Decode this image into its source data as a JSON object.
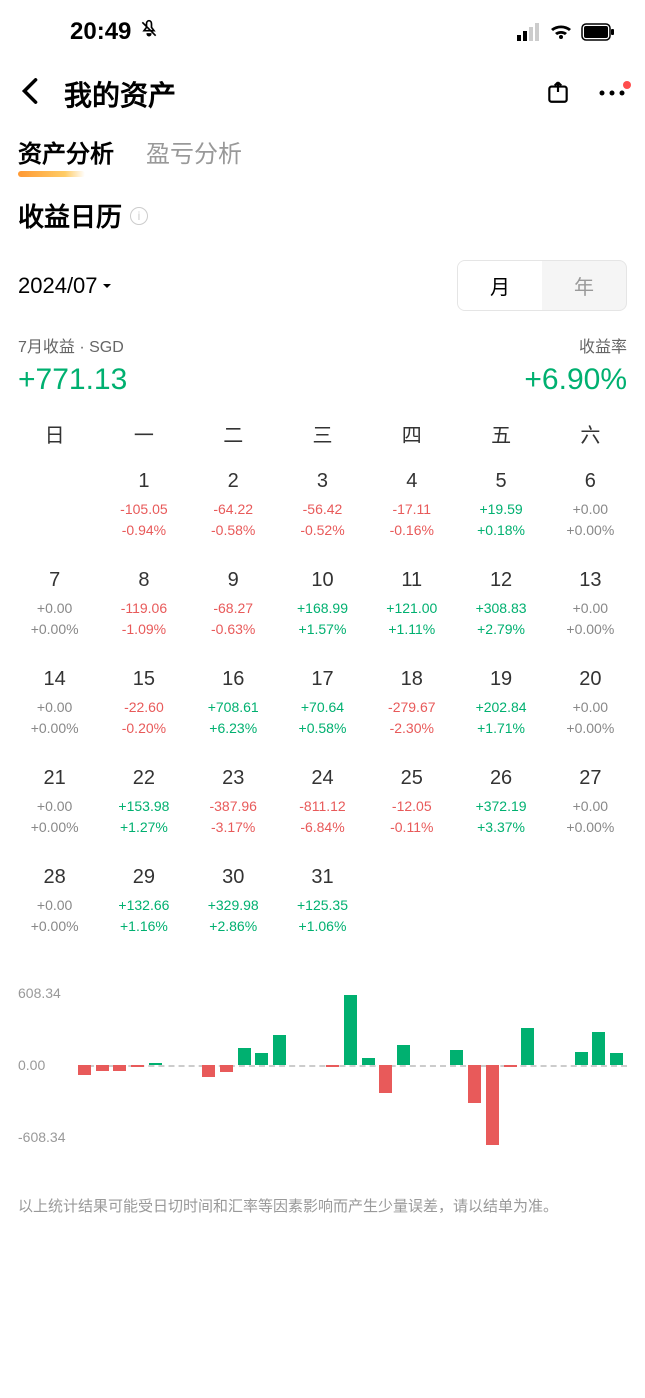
{
  "status": {
    "time": "20:49"
  },
  "header": {
    "title": "我的资产"
  },
  "tabs": {
    "active": "资产分析",
    "inactive": "盈亏分析"
  },
  "section": {
    "title": "收益日历"
  },
  "date": {
    "label": "2024/07"
  },
  "toggle": {
    "month": "月",
    "year": "年"
  },
  "summary": {
    "left_label": "7月收益 · SGD",
    "right_label": "收益率",
    "left_value": "+771.13",
    "right_value": "+6.90%"
  },
  "weekdays": [
    "日",
    "一",
    "二",
    "三",
    "四",
    "五",
    "六"
  ],
  "days": [
    {
      "day": "",
      "val": "",
      "pct": "",
      "cls": ""
    },
    {
      "day": "1",
      "val": "-105.05",
      "pct": "-0.94%",
      "cls": "neg"
    },
    {
      "day": "2",
      "val": "-64.22",
      "pct": "-0.58%",
      "cls": "neg"
    },
    {
      "day": "3",
      "val": "-56.42",
      "pct": "-0.52%",
      "cls": "neg"
    },
    {
      "day": "4",
      "val": "-17.11",
      "pct": "-0.16%",
      "cls": "neg"
    },
    {
      "day": "5",
      "val": "+19.59",
      "pct": "+0.18%",
      "cls": "pos"
    },
    {
      "day": "6",
      "val": "+0.00",
      "pct": "+0.00%",
      "cls": "neu"
    },
    {
      "day": "7",
      "val": "+0.00",
      "pct": "+0.00%",
      "cls": "neu"
    },
    {
      "day": "8",
      "val": "-119.06",
      "pct": "-1.09%",
      "cls": "neg"
    },
    {
      "day": "9",
      "val": "-68.27",
      "pct": "-0.63%",
      "cls": "neg"
    },
    {
      "day": "10",
      "val": "+168.99",
      "pct": "+1.57%",
      "cls": "pos"
    },
    {
      "day": "11",
      "val": "+121.00",
      "pct": "+1.11%",
      "cls": "pos"
    },
    {
      "day": "12",
      "val": "+308.83",
      "pct": "+2.79%",
      "cls": "pos"
    },
    {
      "day": "13",
      "val": "+0.00",
      "pct": "+0.00%",
      "cls": "neu"
    },
    {
      "day": "14",
      "val": "+0.00",
      "pct": "+0.00%",
      "cls": "neu"
    },
    {
      "day": "15",
      "val": "-22.60",
      "pct": "-0.20%",
      "cls": "neg"
    },
    {
      "day": "16",
      "val": "+708.61",
      "pct": "+6.23%",
      "cls": "pos"
    },
    {
      "day": "17",
      "val": "+70.64",
      "pct": "+0.58%",
      "cls": "pos"
    },
    {
      "day": "18",
      "val": "-279.67",
      "pct": "-2.30%",
      "cls": "neg"
    },
    {
      "day": "19",
      "val": "+202.84",
      "pct": "+1.71%",
      "cls": "pos"
    },
    {
      "day": "20",
      "val": "+0.00",
      "pct": "+0.00%",
      "cls": "neu"
    },
    {
      "day": "21",
      "val": "+0.00",
      "pct": "+0.00%",
      "cls": "neu"
    },
    {
      "day": "22",
      "val": "+153.98",
      "pct": "+1.27%",
      "cls": "pos"
    },
    {
      "day": "23",
      "val": "-387.96",
      "pct": "-3.17%",
      "cls": "neg"
    },
    {
      "day": "24",
      "val": "-811.12",
      "pct": "-6.84%",
      "cls": "neg"
    },
    {
      "day": "25",
      "val": "-12.05",
      "pct": "-0.11%",
      "cls": "neg"
    },
    {
      "day": "26",
      "val": "+372.19",
      "pct": "+3.37%",
      "cls": "pos"
    },
    {
      "day": "27",
      "val": "+0.00",
      "pct": "+0.00%",
      "cls": "neu"
    },
    {
      "day": "28",
      "val": "+0.00",
      "pct": "+0.00%",
      "cls": "neu"
    },
    {
      "day": "29",
      "val": "+132.66",
      "pct": "+1.16%",
      "cls": "pos"
    },
    {
      "day": "30",
      "val": "+329.98",
      "pct": "+2.86%",
      "cls": "pos"
    },
    {
      "day": "31",
      "val": "+125.35",
      "pct": "+1.06%",
      "cls": "pos"
    }
  ],
  "chart": {
    "ylabels": [
      "608.34",
      "0.00",
      "-608.34"
    ],
    "max": 811.12,
    "bars": [
      -105.05,
      -64.22,
      -56.42,
      -17.11,
      19.59,
      0,
      0,
      -119.06,
      -68.27,
      168.99,
      121.0,
      308.83,
      0,
      0,
      -22.6,
      708.61,
      70.64,
      -279.67,
      202.84,
      0,
      0,
      153.98,
      -387.96,
      -811.12,
      -12.05,
      372.19,
      0,
      0,
      132.66,
      329.98,
      125.35
    ],
    "pos_color": "#00b070",
    "neg_color": "#e85a5a"
  },
  "disclaimer": "以上统计结果可能受日切时间和汇率等因素影响而产生少量误差，请以结单为准。"
}
